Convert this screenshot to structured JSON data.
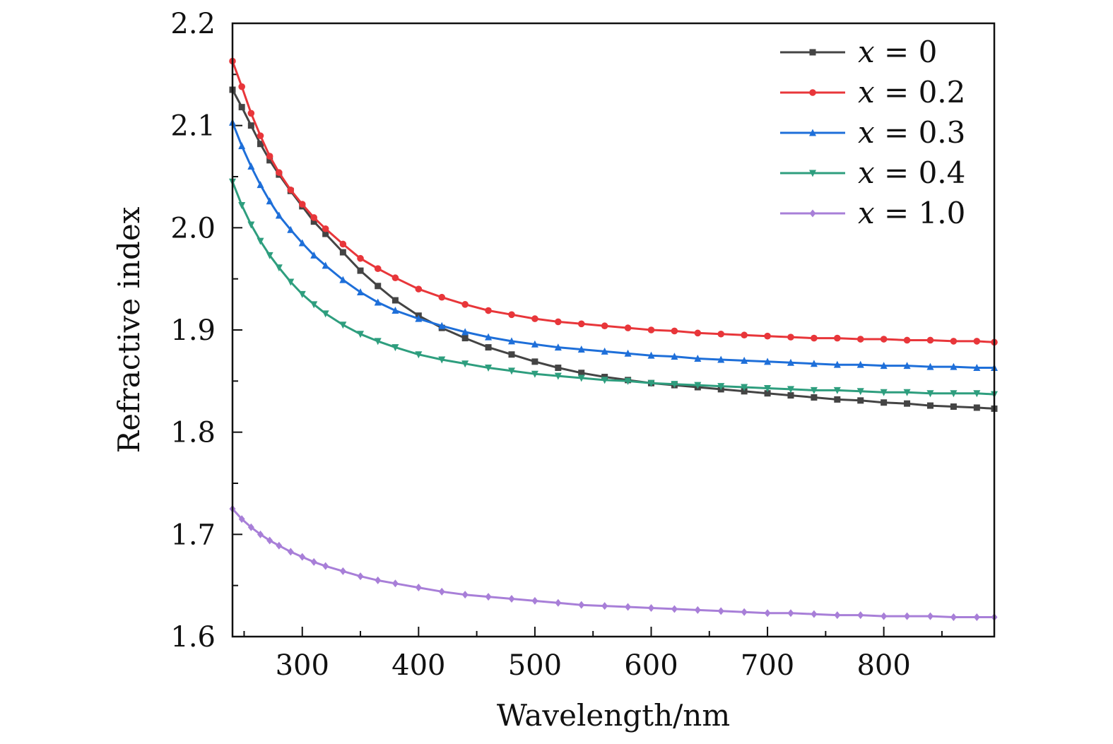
{
  "chart_data": {
    "type": "line",
    "title": "",
    "xlabel": "Wavelength/nm",
    "ylabel": "Refractive index",
    "xlim": [
      240,
      895
    ],
    "ylim": [
      1.6,
      2.2
    ],
    "xticks": [
      300,
      400,
      500,
      600,
      700,
      800
    ],
    "yticks": [
      1.6,
      1.7,
      1.8,
      1.9,
      2.0,
      2.1,
      2.2
    ],
    "ytick_labels": [
      "1.6",
      "1.7",
      "1.8",
      "1.9",
      "2.0",
      "2.1",
      "2.2"
    ],
    "grid": false,
    "legend_position": "top-right",
    "series": [
      {
        "name": "x = 0",
        "legend_var": "x",
        "legend_rest": " = 0",
        "color": "#444444",
        "marker": "square",
        "x": [
          240,
          248,
          256,
          264,
          272,
          280,
          290,
          300,
          310,
          320,
          335,
          350,
          365,
          380,
          400,
          420,
          440,
          460,
          480,
          500,
          520,
          540,
          560,
          580,
          600,
          620,
          640,
          660,
          680,
          700,
          720,
          740,
          760,
          780,
          800,
          820,
          840,
          860,
          880,
          895
        ],
        "y": [
          2.135,
          2.118,
          2.1,
          2.082,
          2.066,
          2.052,
          2.036,
          2.021,
          2.006,
          1.994,
          1.976,
          1.958,
          1.943,
          1.929,
          1.914,
          1.902,
          1.892,
          1.883,
          1.876,
          1.869,
          1.863,
          1.858,
          1.854,
          1.851,
          1.848,
          1.846,
          1.844,
          1.842,
          1.84,
          1.838,
          1.836,
          1.834,
          1.832,
          1.831,
          1.829,
          1.828,
          1.826,
          1.825,
          1.824,
          1.823
        ]
      },
      {
        "name": "x = 0.2",
        "legend_var": "x",
        "legend_rest": " = 0.2",
        "color": "#e8363a",
        "marker": "circle",
        "x": [
          240,
          248,
          256,
          264,
          272,
          280,
          290,
          300,
          310,
          320,
          335,
          350,
          365,
          380,
          400,
          420,
          440,
          460,
          480,
          500,
          520,
          540,
          560,
          580,
          600,
          620,
          640,
          660,
          680,
          700,
          720,
          740,
          760,
          780,
          800,
          820,
          840,
          860,
          880,
          895
        ],
        "y": [
          2.163,
          2.138,
          2.112,
          2.09,
          2.07,
          2.054,
          2.037,
          2.023,
          2.01,
          1.999,
          1.984,
          1.97,
          1.96,
          1.951,
          1.94,
          1.932,
          1.925,
          1.919,
          1.915,
          1.911,
          1.908,
          1.906,
          1.904,
          1.902,
          1.9,
          1.899,
          1.897,
          1.896,
          1.895,
          1.894,
          1.893,
          1.892,
          1.892,
          1.891,
          1.891,
          1.89,
          1.89,
          1.889,
          1.889,
          1.888
        ]
      },
      {
        "name": "x = 0.3",
        "legend_var": "x",
        "legend_rest": " = 0.3",
        "color": "#1e6fd9",
        "marker": "triangle-up",
        "x": [
          240,
          248,
          256,
          264,
          272,
          280,
          290,
          300,
          310,
          320,
          335,
          350,
          365,
          380,
          400,
          420,
          440,
          460,
          480,
          500,
          520,
          540,
          560,
          580,
          600,
          620,
          640,
          660,
          680,
          700,
          720,
          740,
          760,
          780,
          800,
          820,
          840,
          860,
          880,
          895
        ],
        "y": [
          2.103,
          2.08,
          2.06,
          2.042,
          2.026,
          2.012,
          1.998,
          1.985,
          1.973,
          1.963,
          1.949,
          1.937,
          1.927,
          1.919,
          1.911,
          1.904,
          1.898,
          1.893,
          1.889,
          1.886,
          1.883,
          1.881,
          1.879,
          1.877,
          1.875,
          1.874,
          1.872,
          1.871,
          1.87,
          1.869,
          1.868,
          1.867,
          1.866,
          1.866,
          1.865,
          1.865,
          1.864,
          1.864,
          1.863,
          1.863
        ]
      },
      {
        "name": "x = 0.4",
        "legend_var": "x",
        "legend_rest": " = 0.4",
        "color": "#2e9e7e",
        "marker": "triangle-down",
        "x": [
          240,
          248,
          256,
          264,
          272,
          280,
          290,
          300,
          310,
          320,
          335,
          350,
          365,
          380,
          400,
          420,
          440,
          460,
          480,
          500,
          520,
          540,
          560,
          580,
          600,
          620,
          640,
          660,
          680,
          700,
          720,
          740,
          760,
          780,
          800,
          820,
          840,
          860,
          880,
          895
        ],
        "y": [
          2.045,
          2.022,
          2.003,
          1.987,
          1.973,
          1.961,
          1.947,
          1.935,
          1.925,
          1.916,
          1.905,
          1.896,
          1.889,
          1.883,
          1.876,
          1.871,
          1.867,
          1.863,
          1.86,
          1.857,
          1.855,
          1.853,
          1.851,
          1.85,
          1.848,
          1.847,
          1.846,
          1.845,
          1.844,
          1.843,
          1.842,
          1.841,
          1.841,
          1.84,
          1.839,
          1.839,
          1.838,
          1.838,
          1.838,
          1.837
        ]
      },
      {
        "name": "x = 1.0",
        "legend_var": "x",
        "legend_rest": " = 1.0",
        "color": "#a87fd8",
        "marker": "diamond",
        "x": [
          240,
          248,
          256,
          264,
          272,
          280,
          290,
          300,
          310,
          320,
          335,
          350,
          365,
          380,
          400,
          420,
          440,
          460,
          480,
          500,
          520,
          540,
          560,
          580,
          600,
          620,
          640,
          660,
          680,
          700,
          720,
          740,
          760,
          780,
          800,
          820,
          840,
          860,
          880,
          895
        ],
        "y": [
          1.725,
          1.715,
          1.707,
          1.7,
          1.694,
          1.689,
          1.683,
          1.678,
          1.673,
          1.669,
          1.664,
          1.659,
          1.655,
          1.652,
          1.648,
          1.644,
          1.641,
          1.639,
          1.637,
          1.635,
          1.633,
          1.631,
          1.63,
          1.629,
          1.628,
          1.627,
          1.626,
          1.625,
          1.624,
          1.623,
          1.623,
          1.622,
          1.621,
          1.621,
          1.62,
          1.62,
          1.62,
          1.619,
          1.619,
          1.619
        ]
      }
    ]
  }
}
